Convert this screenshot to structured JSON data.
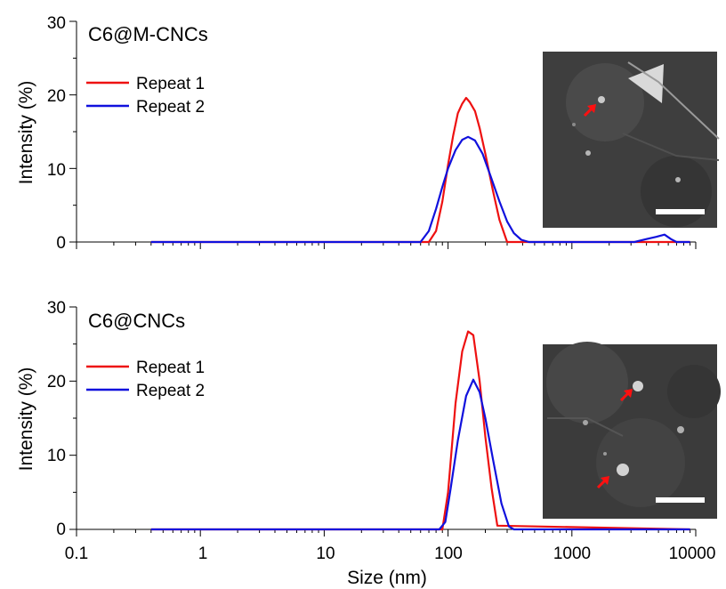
{
  "chart_data": [
    {
      "type": "line",
      "title": "C6@M-CNCs",
      "xlabel": "",
      "ylabel": "Intensity (%)",
      "xscale": "log",
      "xlim": [
        0.1,
        10000
      ],
      "ylim": [
        0,
        30
      ],
      "yticks": [
        "0",
        "10",
        "20",
        "30"
      ],
      "legend_position": "top-left",
      "inset": "SEM micrograph (top-right) with red arrows and white scale bar",
      "series": [
        {
          "name": "Repeat 1",
          "color": "#ee1111",
          "x": [
            0.4,
            70,
            80,
            90,
            100,
            110,
            120,
            130,
            140,
            150,
            165,
            180,
            200,
            230,
            260,
            300,
            9000
          ],
          "y": [
            0,
            0,
            1.5,
            5.5,
            10.5,
            14.5,
            17.5,
            18.8,
            19.6,
            19.0,
            17.8,
            15.5,
            12.0,
            7.0,
            3.0,
            0,
            0
          ]
        },
        {
          "name": "Repeat 2",
          "color": "#1111dd",
          "x": [
            0.4,
            60,
            70,
            80,
            90,
            100,
            115,
            130,
            145,
            165,
            190,
            220,
            260,
            300,
            340,
            390,
            450,
            3200,
            4000,
            4800,
            5600,
            6300,
            7000,
            9000
          ],
          "y": [
            0,
            0,
            1.5,
            4.5,
            7.5,
            10.0,
            12.5,
            13.9,
            14.3,
            13.8,
            12.0,
            9.0,
            5.5,
            2.8,
            1.2,
            0.3,
            0,
            0,
            0.4,
            0.7,
            1.0,
            0.4,
            0,
            0
          ]
        }
      ]
    },
    {
      "type": "line",
      "title": "C6@CNCs",
      "xlabel": "Size (nm)",
      "ylabel": "Intensity (%)",
      "xscale": "log",
      "xlim": [
        0.1,
        10000
      ],
      "ylim": [
        0,
        30
      ],
      "yticks": [
        "0",
        "10",
        "20",
        "30"
      ],
      "xticks": [
        "0.1",
        "1",
        "10",
        "100",
        "1000",
        "10000"
      ],
      "legend_position": "top-left",
      "inset": "SEM micrograph (right) with red arrows and white scale bar",
      "series": [
        {
          "name": "Repeat 1",
          "color": "#ee1111",
          "x": [
            0.4,
            90,
            100,
            115,
            130,
            145,
            160,
            180,
            200,
            225,
            250,
            9000
          ],
          "y": [
            0,
            0,
            5.0,
            17.0,
            24.0,
            26.7,
            26.2,
            20.0,
            12.5,
            5.5,
            0.5,
            0
          ]
        },
        {
          "name": "Repeat 2",
          "color": "#1111dd",
          "x": [
            0.4,
            85,
            95,
            105,
            120,
            140,
            160,
            180,
            200,
            230,
            270,
            310,
            340,
            9000
          ],
          "y": [
            0,
            0,
            1.0,
            5.5,
            12.0,
            18.0,
            20.2,
            18.5,
            15.0,
            9.5,
            3.5,
            0.4,
            0,
            0
          ]
        }
      ]
    }
  ]
}
